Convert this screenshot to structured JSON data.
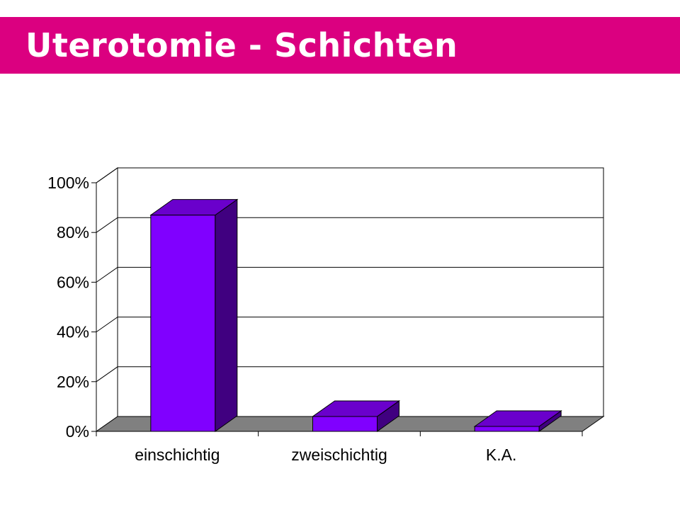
{
  "slide": {
    "title": "Uterotomie - Schichten",
    "accent_color": "#DB0080"
  },
  "chart_data": {
    "type": "bar",
    "style": "3d",
    "title": "",
    "xlabel": "",
    "ylabel": "",
    "categories": [
      "einschichtig",
      "zweischichtig",
      "K.A."
    ],
    "values": [
      87,
      6,
      2
    ],
    "ylim": [
      0,
      100
    ],
    "y_ticks": [
      "0%",
      "20%",
      "40%",
      "60%",
      "80%",
      "100%"
    ],
    "grid": true,
    "legend": "none",
    "colors": {
      "bar_front": "#8000FF",
      "bar_top": "#6A00CC",
      "bar_side": "#400080",
      "floor": "#808080",
      "wall": "#FFFFFF"
    }
  }
}
